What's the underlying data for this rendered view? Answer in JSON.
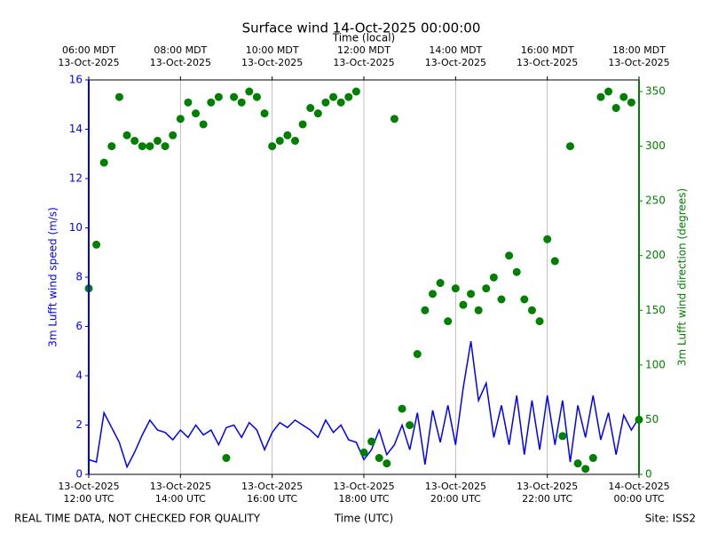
{
  "chart_data": {
    "type": "line-scatter",
    "title": "Surface wind 14-Oct-2025 00:00:00",
    "top_xlabel": "Time (local)",
    "xlabel": "Time (UTC)",
    "ylabel": "3m Lufft wind speed (m/s)",
    "y2label": "3m Lufft wind direction (degrees)",
    "footer_left": "REAL TIME DATA, NOT CHECKED FOR QUALITY",
    "footer_right": "Site: ISS2",
    "grid": "x",
    "xlim": [
      "2025-10-13T12:00",
      "2025-10-14T00:00"
    ],
    "xticks": [
      {
        "value": "2025-10-13T12:00",
        "label": "13-Oct-2025\n12:00 UTC"
      },
      {
        "value": "2025-10-13T14:00",
        "label": "13-Oct-2025\n14:00 UTC"
      },
      {
        "value": "2025-10-13T16:00",
        "label": "13-Oct-2025\n16:00 UTC"
      },
      {
        "value": "2025-10-13T18:00",
        "label": "13-Oct-2025\n18:00 UTC"
      },
      {
        "value": "2025-10-13T20:00",
        "label": "13-Oct-2025\n20:00 UTC"
      },
      {
        "value": "2025-10-13T22:00",
        "label": "13-Oct-2025\n22:00 UTC"
      },
      {
        "value": "2025-10-14T00:00",
        "label": "14-Oct-2025\n00:00 UTC"
      }
    ],
    "top_xticks": [
      {
        "value": "2025-10-13T12:00",
        "label": "06:00 MDT\n13-Oct-2025"
      },
      {
        "value": "2025-10-13T14:00",
        "label": "08:00 MDT\n13-Oct-2025"
      },
      {
        "value": "2025-10-13T16:00",
        "label": "10:00 MDT\n13-Oct-2025"
      },
      {
        "value": "2025-10-13T18:00",
        "label": "12:00 MDT\n13-Oct-2025"
      },
      {
        "value": "2025-10-13T20:00",
        "label": "14:00 MDT\n13-Oct-2025"
      },
      {
        "value": "2025-10-13T22:00",
        "label": "16:00 MDT\n13-Oct-2025"
      },
      {
        "value": "2025-10-14T00:00",
        "label": "18:00 MDT\n13-Oct-2025"
      }
    ],
    "ylim": [
      0,
      16
    ],
    "yticks": [
      0,
      2,
      4,
      6,
      8,
      10,
      12,
      14,
      16
    ],
    "y2lim": [
      0,
      360.6
    ],
    "y2ticks": [
      0,
      50,
      100,
      150,
      200,
      250,
      300,
      350
    ],
    "x": [
      "2025-10-13T12:00",
      "2025-10-13T12:10",
      "2025-10-13T12:20",
      "2025-10-13T12:30",
      "2025-10-13T12:40",
      "2025-10-13T12:50",
      "2025-10-13T13:00",
      "2025-10-13T13:10",
      "2025-10-13T13:20",
      "2025-10-13T13:30",
      "2025-10-13T13:40",
      "2025-10-13T13:50",
      "2025-10-13T14:00",
      "2025-10-13T14:10",
      "2025-10-13T14:20",
      "2025-10-13T14:30",
      "2025-10-13T14:40",
      "2025-10-13T14:50",
      "2025-10-13T15:00",
      "2025-10-13T15:10",
      "2025-10-13T15:20",
      "2025-10-13T15:30",
      "2025-10-13T15:40",
      "2025-10-13T15:50",
      "2025-10-13T16:00",
      "2025-10-13T16:10",
      "2025-10-13T16:20",
      "2025-10-13T16:30",
      "2025-10-13T16:40",
      "2025-10-13T16:50",
      "2025-10-13T17:00",
      "2025-10-13T17:10",
      "2025-10-13T17:20",
      "2025-10-13T17:30",
      "2025-10-13T17:40",
      "2025-10-13T17:50",
      "2025-10-13T18:00",
      "2025-10-13T18:10",
      "2025-10-13T18:20",
      "2025-10-13T18:30",
      "2025-10-13T18:40",
      "2025-10-13T18:50",
      "2025-10-13T19:00",
      "2025-10-13T19:10",
      "2025-10-13T19:20",
      "2025-10-13T19:30",
      "2025-10-13T19:40",
      "2025-10-13T19:50",
      "2025-10-13T20:00",
      "2025-10-13T20:10",
      "2025-10-13T20:20",
      "2025-10-13T20:30",
      "2025-10-13T20:40",
      "2025-10-13T20:50",
      "2025-10-13T21:00",
      "2025-10-13T21:10",
      "2025-10-13T21:20",
      "2025-10-13T21:30",
      "2025-10-13T21:40",
      "2025-10-13T21:50",
      "2025-10-13T22:00",
      "2025-10-13T22:10",
      "2025-10-13T22:20",
      "2025-10-13T22:30",
      "2025-10-13T22:40",
      "2025-10-13T22:50",
      "2025-10-13T23:00",
      "2025-10-13T23:10",
      "2025-10-13T23:20",
      "2025-10-13T23:30",
      "2025-10-13T23:40",
      "2025-10-13T23:50",
      "2025-10-14T00:00"
    ],
    "series": [
      {
        "color": "#0000ff",
        "kind": "line",
        "values": [
          0.6,
          0.5,
          2.5,
          1.9,
          1.3,
          0.3,
          0.9,
          1.6,
          2.2,
          1.8,
          1.7,
          1.4,
          1.8,
          1.5,
          2.0,
          1.6,
          1.8,
          1.2,
          1.9,
          2.0,
          1.5,
          2.1,
          1.8,
          1.0,
          1.7,
          2.1,
          1.9,
          2.2,
          2.0,
          1.8,
          1.5,
          2.2,
          1.7,
          2.0,
          1.4,
          1.3,
          0.6,
          1.0,
          1.8,
          0.8,
          1.2,
          2.0,
          1.0,
          2.5,
          0.4,
          2.6,
          1.3,
          2.8,
          1.2,
          3.5,
          5.4,
          3.0,
          3.7,
          1.5,
          2.8,
          1.2,
          3.2,
          0.8,
          3.0,
          1.0,
          3.2,
          1.2,
          3.0,
          0.5,
          2.8,
          1.5,
          3.2,
          1.4,
          2.5,
          0.8,
          2.4,
          1.8,
          2.3
        ]
      },
      {
        "color": "#008000",
        "kind": "scatter",
        "axis": "y2",
        "values": [
          170,
          210,
          285,
          300,
          345,
          310,
          305,
          300,
          300,
          305,
          300,
          310,
          325,
          340,
          330,
          320,
          340,
          345,
          15,
          345,
          340,
          350,
          345,
          330,
          300,
          305,
          310,
          305,
          320,
          335,
          330,
          340,
          345,
          340,
          345,
          350,
          20,
          30,
          15,
          10,
          325,
          60,
          45,
          110,
          150,
          165,
          175,
          140,
          170,
          155,
          165,
          150,
          170,
          180,
          160,
          200,
          185,
          160,
          150,
          140,
          215,
          195,
          35,
          300,
          10,
          5,
          15,
          345,
          350,
          335,
          345,
          340,
          50
        ]
      }
    ]
  }
}
